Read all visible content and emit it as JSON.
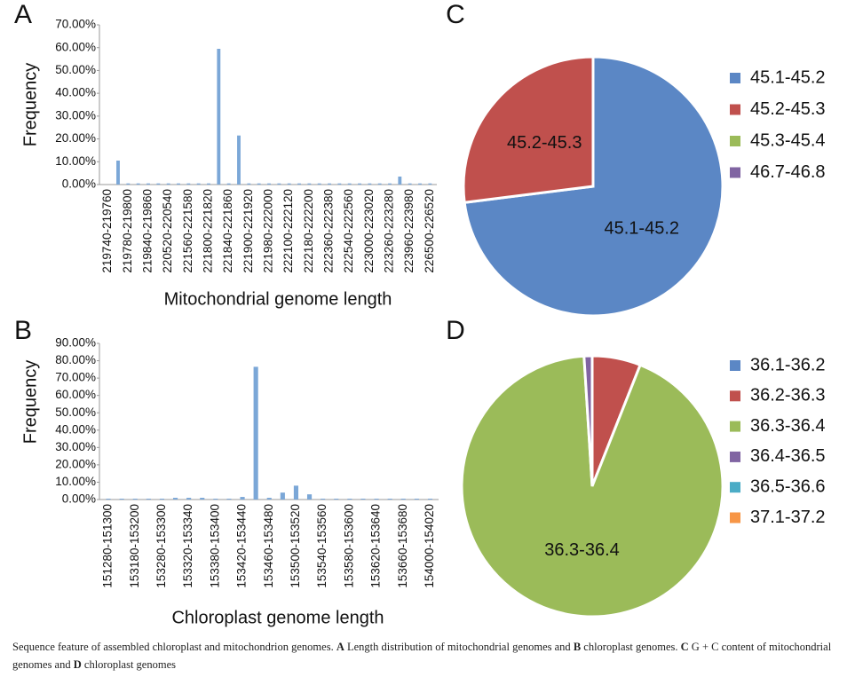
{
  "chart_data": [
    {
      "type": "bar",
      "panel": "A",
      "ylabel": "Frequency",
      "xlabel": "Mitochondrial genome length",
      "color": "#7ba7d7",
      "categories": [
        "219740-219760",
        null,
        "219780-219800",
        null,
        "219840-219860",
        null,
        "220520-220540",
        null,
        "221560-221580",
        null,
        "221800-221820",
        null,
        "221840-221860",
        null,
        "221900-221920",
        null,
        "221980-222000",
        null,
        "222100-222120",
        null,
        "222180-222200",
        null,
        "222360-222380",
        null,
        "222540-222560",
        null,
        "223000-223020",
        null,
        "223260-223280",
        null,
        "223960-223980",
        null,
        "226500-226520"
      ],
      "values": [
        0,
        10.5,
        0.5,
        0.5,
        0.5,
        0.5,
        0.5,
        0.5,
        0.5,
        0.5,
        0.5,
        59.5,
        0.5,
        21.5,
        0.5,
        0.5,
        0.5,
        0.5,
        0.5,
        0.5,
        0.5,
        0.5,
        0.5,
        0.5,
        0.5,
        0.5,
        0.5,
        0.5,
        0.5,
        3.5,
        0.5,
        0.5,
        0.5
      ],
      "ylim": [
        0,
        70
      ],
      "yticks": [
        {
          "value": 0,
          "label": "0.00%"
        },
        {
          "value": 10,
          "label": "10.00%"
        },
        {
          "value": 20,
          "label": "20.00%"
        },
        {
          "value": 30,
          "label": "30.00%"
        },
        {
          "value": 40,
          "label": "40.00%"
        },
        {
          "value": 50,
          "label": "50.00%"
        },
        {
          "value": 60,
          "label": "60.00%"
        },
        {
          "value": 70,
          "label": "70.00%"
        }
      ]
    },
    {
      "type": "bar",
      "panel": "B",
      "ylabel": "Frequency",
      "xlabel": "Chloroplast genome length",
      "color": "#7ba7d7",
      "categories": [
        "151280-151300",
        null,
        "153180-153200",
        null,
        "153280-153300",
        null,
        "153320-153340",
        null,
        "153380-153400",
        null,
        "153420-153440",
        null,
        "153460-153480",
        null,
        "153500-153520",
        null,
        "153540-153560",
        null,
        "153580-153600",
        null,
        "153620-153640",
        null,
        "153660-153680",
        null,
        "154000-154020"
      ],
      "values": [
        0.5,
        0.5,
        0.5,
        0.5,
        0.5,
        1,
        1,
        1,
        0.5,
        0.5,
        1.5,
        76.5,
        1,
        4,
        8,
        3,
        0.5,
        0.5,
        0.5,
        0.5,
        0.5,
        0.5,
        0.5,
        0.5,
        0.5
      ],
      "ylim": [
        0,
        90
      ],
      "yticks": [
        {
          "value": 0,
          "label": "0.00%"
        },
        {
          "value": 10,
          "label": "10.00%"
        },
        {
          "value": 20,
          "label": "20.00%"
        },
        {
          "value": 30,
          "label": "30.00%"
        },
        {
          "value": 40,
          "label": "40.00%"
        },
        {
          "value": 50,
          "label": "50.00%"
        },
        {
          "value": 60,
          "label": "60.00%"
        },
        {
          "value": 70,
          "label": "70.00%"
        },
        {
          "value": 80,
          "label": "80.00%"
        },
        {
          "value": 90,
          "label": "90.00%"
        }
      ]
    },
    {
      "type": "pie",
      "panel": "C",
      "categories": [
        "45.1-45.2",
        "45.2-45.3",
        "45.3-45.4",
        "46.7-46.8"
      ],
      "values": [
        73,
        27,
        0,
        0
      ],
      "colors": [
        "#5b87c5",
        "#c0504d",
        "#9bbb59",
        "#8064a2"
      ]
    },
    {
      "type": "pie",
      "panel": "D",
      "categories": [
        "36.1-36.2",
        "36.2-36.3",
        "36.3-36.4",
        "36.4-36.5",
        "36.5-36.6",
        "37.1-37.2"
      ],
      "values": [
        0,
        6,
        93,
        1,
        0,
        0
      ],
      "colors": [
        "#5b87c5",
        "#c0504d",
        "#9bbb59",
        "#8064a2",
        "#4bacc6",
        "#f79646"
      ]
    }
  ],
  "caption": {
    "parts": [
      {
        "text": "Sequence feature of assembled chloroplast and mitochondrion genomes. ",
        "bold": false
      },
      {
        "text": "A",
        "bold": true
      },
      {
        "text": " Length distribution of mitochondrial genomes and ",
        "bold": false
      },
      {
        "text": "B",
        "bold": true
      },
      {
        "text": " chloroplast genomes. ",
        "bold": false
      },
      {
        "text": "C",
        "bold": true
      },
      {
        "text": " G + C content of mitochondrial genomes and ",
        "bold": false
      },
      {
        "text": "D",
        "bold": true
      },
      {
        "text": " chloroplast genomes",
        "bold": false
      }
    ]
  }
}
